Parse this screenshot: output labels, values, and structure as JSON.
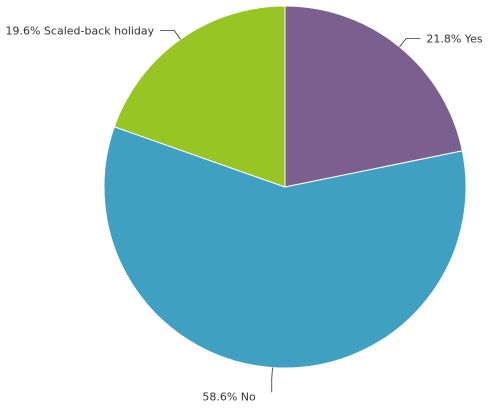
{
  "chart_data": {
    "type": "pie",
    "title": "",
    "legend": "none",
    "slices": [
      {
        "label": "Yes",
        "value": 21.8,
        "value_text": "21.8%",
        "color": "#7b5f8e"
      },
      {
        "label": "No",
        "value": 58.6,
        "value_text": "58.6%",
        "color": "#3fa0c2"
      },
      {
        "label": "Scaled-back holiday",
        "value": 19.6,
        "value_text": "19.6%",
        "color": "#96c524"
      }
    ]
  }
}
